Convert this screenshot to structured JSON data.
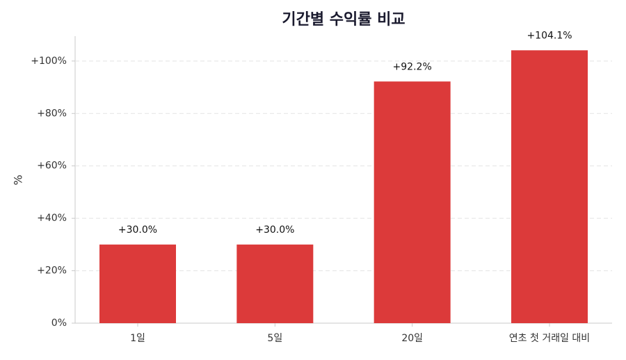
{
  "chart_data": {
    "type": "bar",
    "title": "기간별 수익률 비교",
    "y_label": "%",
    "categories": [
      "1일",
      "5일",
      "20일",
      "연초 첫 거래일 대비"
    ],
    "values": [
      30.0,
      30.0,
      92.2,
      104.1
    ],
    "value_labels": [
      "+30.0%",
      "+30.0%",
      "+92.2%",
      "+104.1%"
    ],
    "color": "#dc3a3a",
    "ylim": [
      0,
      109.5
    ],
    "yticks": [
      {
        "value": 0,
        "label": "0%"
      },
      {
        "value": 20,
        "label": "+20%"
      },
      {
        "value": 40,
        "label": "+40%"
      },
      {
        "value": 60,
        "label": "+60%"
      },
      {
        "value": 80,
        "label": "+80%"
      },
      {
        "value": 100,
        "label": "+100%"
      }
    ],
    "grid": true
  }
}
